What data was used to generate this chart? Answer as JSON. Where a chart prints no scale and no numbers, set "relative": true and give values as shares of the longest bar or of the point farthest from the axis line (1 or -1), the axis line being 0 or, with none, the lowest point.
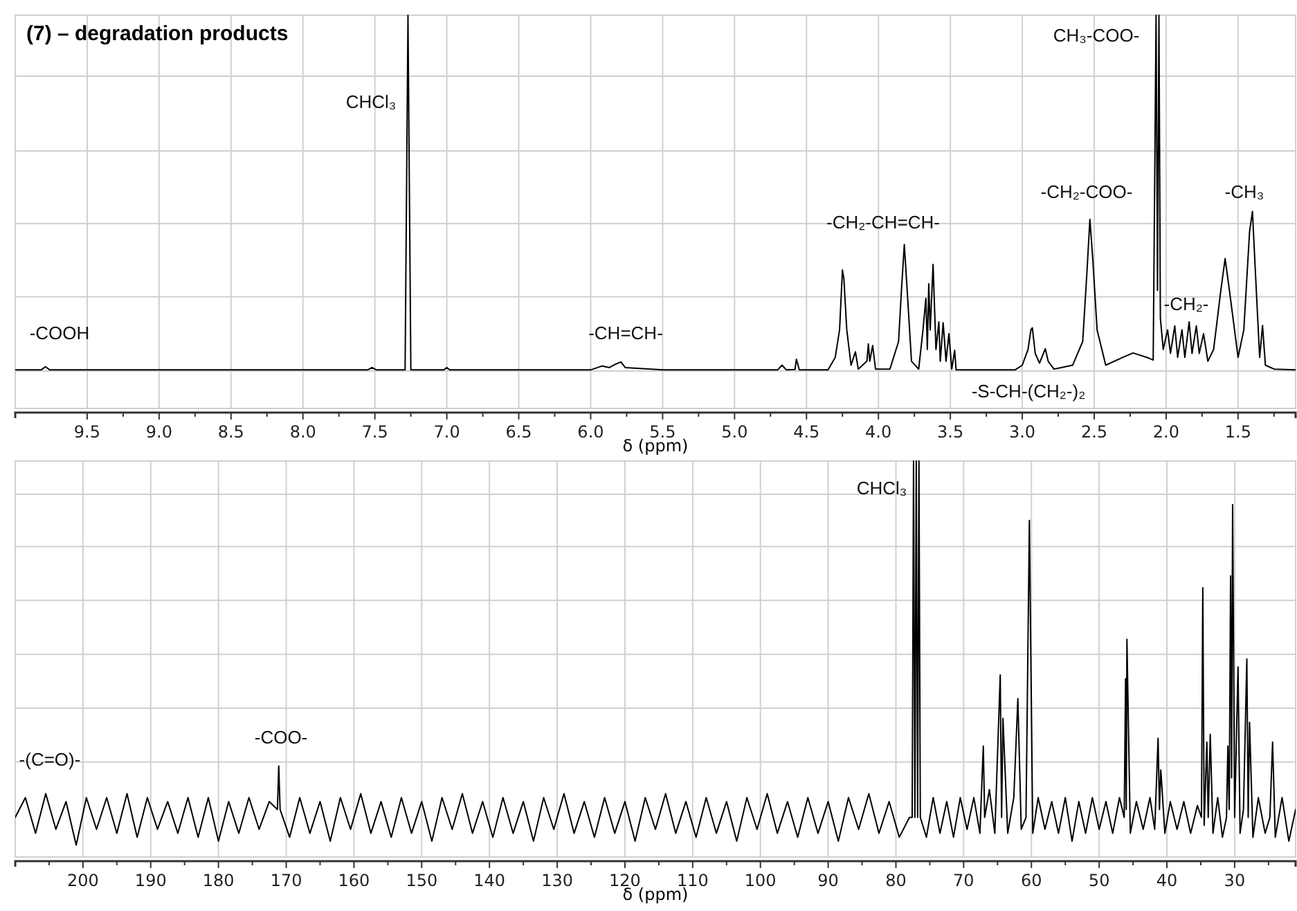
{
  "chart_data": [
    {
      "type": "line",
      "title": "(7) – degradation products",
      "xlabel": "δ (ppm)",
      "relative": true,
      "grid": true,
      "xlim": [
        10.0,
        1.1
      ],
      "xticks": [
        {
          "value": 9.5,
          "label": "9.5"
        },
        {
          "value": 9.25,
          "label": null
        },
        {
          "value": 9.0,
          "label": "9.0"
        },
        {
          "value": 8.75,
          "label": null
        },
        {
          "value": 8.5,
          "label": "8.5"
        },
        {
          "value": 8.25,
          "label": null
        },
        {
          "value": 8.0,
          "label": "8.0"
        },
        {
          "value": 7.75,
          "label": null
        },
        {
          "value": 7.5,
          "label": "7.5"
        },
        {
          "value": 7.25,
          "label": null
        },
        {
          "value": 7.0,
          "label": "7.0"
        },
        {
          "value": 6.75,
          "label": null
        },
        {
          "value": 6.5,
          "label": "6.5"
        },
        {
          "value": 6.25,
          "label": null
        },
        {
          "value": 6.0,
          "label": "6.0"
        },
        {
          "value": 5.75,
          "label": null
        },
        {
          "value": 5.5,
          "label": "5.5"
        },
        {
          "value": 5.25,
          "label": null
        },
        {
          "value": 5.0,
          "label": "5.0"
        },
        {
          "value": 4.75,
          "label": null
        },
        {
          "value": 4.5,
          "label": "4.5"
        },
        {
          "value": 4.25,
          "label": null
        },
        {
          "value": 4.0,
          "label": "4.0"
        },
        {
          "value": 3.75,
          "label": null
        },
        {
          "value": 3.5,
          "label": "3.5"
        },
        {
          "value": 3.25,
          "label": null
        },
        {
          "value": 3.0,
          "label": "3.0"
        },
        {
          "value": 2.75,
          "label": null
        },
        {
          "value": 2.5,
          "label": "2.5"
        },
        {
          "value": 2.25,
          "label": null
        },
        {
          "value": 2.0,
          "label": "2.0"
        },
        {
          "value": 1.75,
          "label": null
        },
        {
          "value": 1.5,
          "label": "1.5"
        },
        {
          "value": 1.25,
          "label": null
        }
      ],
      "annotations": [
        "CHCl₃",
        "-COOH",
        "-CH=CH-",
        "-CH₂-CH=CH-",
        "-CH₂-COO-",
        "CH₃-COO-",
        "-CH₃",
        "-CH₂-",
        "-S-CH-(CH₂-)₂"
      ],
      "series": [
        {
          "color": "#000000",
          "x": [
            10.0,
            9.82,
            9.79,
            9.76,
            8.5,
            7.55,
            7.52,
            7.49,
            7.29,
            7.27,
            7.25,
            7.02,
            7.0,
            6.98,
            6.0,
            5.92,
            5.87,
            5.83,
            5.79,
            5.76,
            5.5,
            4.7,
            4.67,
            4.64,
            4.58,
            4.57,
            4.55,
            4.35,
            4.3,
            4.27,
            4.25,
            4.24,
            4.22,
            4.19,
            4.16,
            4.14,
            4.08,
            4.07,
            4.06,
            4.04,
            4.02,
            3.92,
            3.86,
            3.84,
            3.82,
            3.8,
            3.77,
            3.72,
            3.69,
            3.67,
            3.66,
            3.65,
            3.64,
            3.62,
            3.6,
            3.58,
            3.57,
            3.55,
            3.53,
            3.51,
            3.49,
            3.47,
            3.46,
            3.05,
            3.0,
            2.96,
            2.94,
            2.93,
            2.91,
            2.88,
            2.84,
            2.82,
            2.78,
            2.65,
            2.58,
            2.55,
            2.53,
            2.51,
            2.48,
            2.42,
            2.3,
            2.23,
            2.12,
            2.09,
            2.07,
            2.06,
            2.05,
            2.04,
            2.02,
            1.99,
            1.97,
            1.94,
            1.92,
            1.89,
            1.87,
            1.84,
            1.82,
            1.79,
            1.77,
            1.74,
            1.71,
            1.67,
            1.62,
            1.59,
            1.56,
            1.5,
            1.46,
            1.42,
            1.4,
            1.38,
            1.35,
            1.33,
            1.31,
            1.25,
            1.1
          ],
          "values": [
            0.098,
            0.098,
            0.106,
            0.098,
            0.098,
            0.098,
            0.104,
            0.098,
            0.098,
            1.0,
            0.098,
            0.098,
            0.104,
            0.098,
            0.098,
            0.108,
            0.104,
            0.112,
            0.118,
            0.104,
            0.098,
            0.098,
            0.11,
            0.098,
            0.099,
            0.125,
            0.098,
            0.098,
            0.13,
            0.2,
            0.352,
            0.33,
            0.2,
            0.11,
            0.144,
            0.1,
            0.12,
            0.164,
            0.12,
            0.16,
            0.1,
            0.1,
            0.17,
            0.3,
            0.417,
            0.3,
            0.12,
            0.1,
            0.2,
            0.28,
            0.15,
            0.317,
            0.2,
            0.366,
            0.15,
            0.22,
            0.12,
            0.218,
            0.12,
            0.19,
            0.1,
            0.148,
            0.098,
            0.098,
            0.11,
            0.15,
            0.2,
            0.205,
            0.14,
            0.115,
            0.152,
            0.12,
            0.1,
            0.11,
            0.17,
            0.35,
            0.481,
            0.38,
            0.2,
            0.11,
            0.13,
            0.141,
            0.128,
            0.123,
            1.0,
            0.3,
            1.0,
            0.229,
            0.15,
            0.2,
            0.14,
            0.21,
            0.13,
            0.2,
            0.13,
            0.22,
            0.14,
            0.21,
            0.14,
            0.19,
            0.12,
            0.15,
            0.3,
            0.381,
            0.3,
            0.13,
            0.2,
            0.45,
            0.501,
            0.35,
            0.13,
            0.211,
            0.11,
            0.1,
            0.098
          ]
        }
      ]
    },
    {
      "type": "line",
      "xlabel": "δ (ppm)",
      "relative": true,
      "grid": true,
      "xlim": [
        210,
        21
      ],
      "xticks": [
        {
          "value": 205,
          "label": null
        },
        200,
        {
          "value": 195,
          "label": null
        },
        190,
        {
          "value": 185,
          "label": null
        },
        180,
        {
          "value": 175,
          "label": null
        },
        170,
        {
          "value": 165,
          "label": null
        },
        160,
        {
          "value": 155,
          "label": null
        },
        150,
        {
          "value": 145,
          "label": null
        },
        140,
        {
          "value": 135,
          "label": null
        },
        130,
        {
          "value": 125,
          "label": null
        },
        120,
        {
          "value": 115,
          "label": null
        },
        110,
        {
          "value": 105,
          "label": null
        },
        100,
        {
          "value": 95,
          "label": null
        },
        90,
        {
          "value": 85,
          "label": null
        },
        80,
        {
          "value": 75,
          "label": null
        },
        70,
        {
          "value": 65,
          "label": null
        },
        60,
        {
          "value": 55,
          "label": null
        },
        50,
        {
          "value": 45,
          "label": null
        },
        40,
        {
          "value": 35,
          "label": null
        },
        30,
        {
          "value": 25,
          "label": null
        }
      ],
      "annotations": [
        "-(C=O)-",
        "-COO-",
        "CHCl₃"
      ],
      "series": [
        {
          "color": "#000000",
          "x": [
            210,
            208.5,
            207,
            205.5,
            204,
            202.5,
            201,
            199.5,
            198,
            196.5,
            195,
            193.5,
            192,
            190.5,
            189,
            187.5,
            186,
            184.5,
            183,
            181.5,
            180,
            178.5,
            177,
            175.5,
            174,
            172.5,
            171.3,
            171.1,
            170.9,
            169.5,
            168,
            166.5,
            165,
            163.5,
            162,
            160.5,
            159,
            157.5,
            156,
            154.5,
            153,
            151.5,
            150,
            148.5,
            147,
            145.5,
            144,
            142.5,
            141,
            139.5,
            138,
            136.5,
            135,
            133.5,
            132,
            130.5,
            129,
            127.5,
            126,
            124.5,
            123,
            121.5,
            120,
            118.5,
            117,
            115.5,
            114,
            112.5,
            111,
            109.5,
            108,
            106.5,
            105,
            103.5,
            102,
            100.5,
            99,
            97.5,
            96,
            94.5,
            93,
            91.5,
            90,
            88.5,
            87,
            85.5,
            84,
            82.5,
            81,
            79.5,
            78,
            77.6,
            77.4,
            77.2,
            77.0,
            76.8,
            76.6,
            76.4,
            75.5,
            74.5,
            73.5,
            72.5,
            71.5,
            70.5,
            69.5,
            68.5,
            67.6,
            67.1,
            66.9,
            66.2,
            65.4,
            64.6,
            64.4,
            64.2,
            63.5,
            62.6,
            62.0,
            61.5,
            60.8,
            60.3,
            59.8,
            59,
            58,
            57,
            56,
            55,
            54,
            53,
            52,
            51,
            50,
            49,
            48,
            47,
            46.3,
            46.1,
            46.0,
            45.9,
            45.4,
            44.5,
            43.5,
            42.5,
            41.8,
            41.3,
            41.1,
            40.9,
            40.3,
            39.5,
            38.5,
            37.5,
            36.5,
            35.5,
            34.9,
            34.7,
            34.5,
            34.1,
            33.9,
            33.6,
            33.2,
            32.5,
            31.8,
            31.2,
            31.0,
            30.8,
            30.6,
            30.45,
            30.3,
            30.0,
            29.5,
            29.2,
            28.7,
            28.2,
            28.0,
            27.8,
            27.3,
            26.5,
            25.5,
            24.8,
            24.4,
            24.0,
            23,
            22,
            21
          ],
          "values": [
            0.1,
            0.15,
            0.06,
            0.16,
            0.07,
            0.14,
            0.03,
            0.15,
            0.07,
            0.15,
            0.06,
            0.16,
            0.05,
            0.15,
            0.07,
            0.14,
            0.06,
            0.15,
            0.05,
            0.15,
            0.04,
            0.14,
            0.06,
            0.15,
            0.07,
            0.14,
            0.12,
            0.23,
            0.12,
            0.05,
            0.15,
            0.06,
            0.14,
            0.04,
            0.15,
            0.07,
            0.16,
            0.06,
            0.14,
            0.05,
            0.15,
            0.06,
            0.14,
            0.04,
            0.15,
            0.07,
            0.16,
            0.06,
            0.14,
            0.05,
            0.15,
            0.06,
            0.14,
            0.04,
            0.15,
            0.07,
            0.16,
            0.06,
            0.14,
            0.05,
            0.15,
            0.06,
            0.14,
            0.04,
            0.15,
            0.07,
            0.16,
            0.06,
            0.14,
            0.05,
            0.15,
            0.06,
            0.14,
            0.04,
            0.15,
            0.07,
            0.16,
            0.06,
            0.14,
            0.05,
            0.15,
            0.06,
            0.14,
            0.04,
            0.15,
            0.07,
            0.16,
            0.06,
            0.14,
            0.05,
            0.1,
            0.1,
            1.0,
            0.1,
            1.0,
            0.1,
            1.0,
            0.1,
            0.05,
            0.15,
            0.06,
            0.14,
            0.05,
            0.15,
            0.07,
            0.15,
            0.06,
            0.28,
            0.1,
            0.17,
            0.06,
            0.46,
            0.1,
            0.35,
            0.06,
            0.15,
            0.4,
            0.07,
            0.1,
            0.85,
            0.06,
            0.15,
            0.07,
            0.14,
            0.06,
            0.15,
            0.04,
            0.14,
            0.06,
            0.15,
            0.07,
            0.14,
            0.06,
            0.15,
            0.1,
            0.45,
            0.12,
            0.55,
            0.06,
            0.14,
            0.07,
            0.15,
            0.07,
            0.3,
            0.12,
            0.22,
            0.06,
            0.14,
            0.07,
            0.14,
            0.06,
            0.13,
            0.1,
            0.68,
            0.08,
            0.29,
            0.1,
            0.31,
            0.06,
            0.15,
            0.05,
            0.1,
            0.28,
            0.12,
            0.71,
            0.2,
            0.89,
            0.1,
            0.48,
            0.06,
            0.12,
            0.5,
            0.1,
            0.34,
            0.05,
            0.15,
            0.06,
            0.1,
            0.29,
            0.05,
            0.15,
            0.04,
            0.12
          ]
        }
      ]
    }
  ]
}
